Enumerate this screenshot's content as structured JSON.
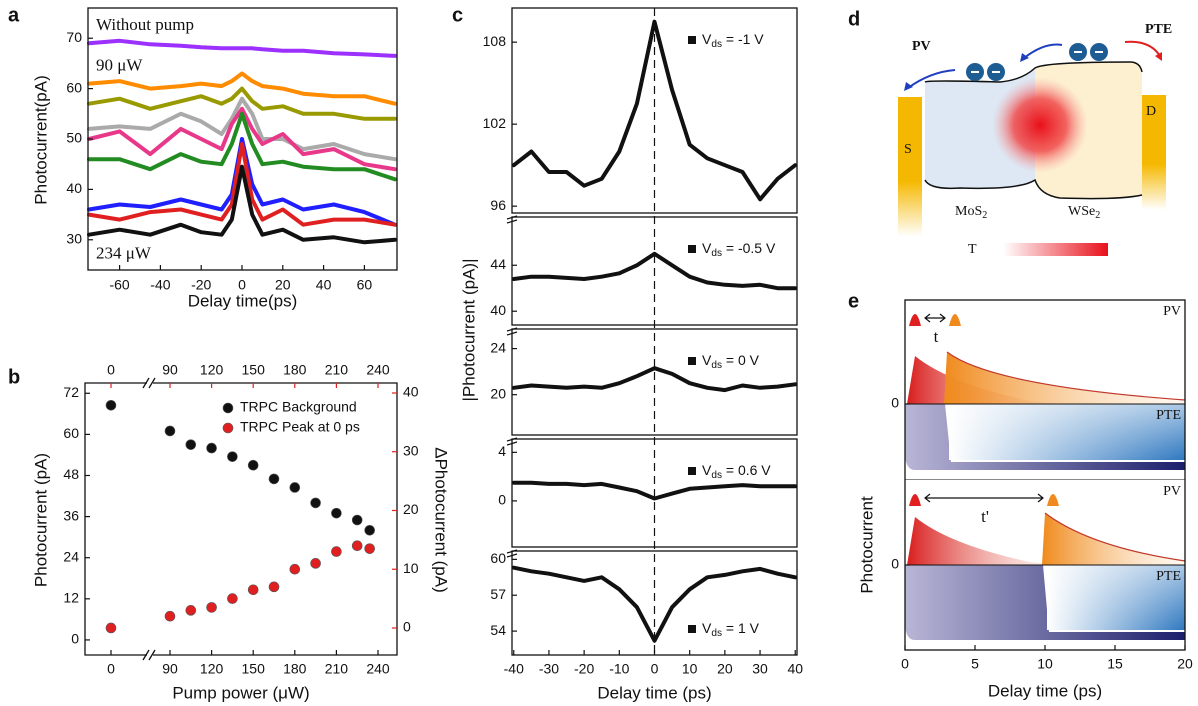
{
  "chart_data": [
    {
      "type": "line",
      "panel": "a",
      "xlabel": "Delay time(ps)",
      "ylabel": "Photocurrent(pA)",
      "x": [
        -75,
        -60,
        -45,
        -30,
        -20,
        -10,
        -5,
        0,
        5,
        10,
        20,
        30,
        45,
        60,
        75
      ],
      "xlim": [
        -75,
        75
      ],
      "xticks": [
        -60,
        -40,
        -20,
        0,
        20,
        40,
        60
      ],
      "ylim": [
        24,
        76
      ],
      "yticks": [
        30,
        40,
        50,
        60,
        70
      ],
      "series": [
        {
          "name": "Without pump",
          "color": "#9b30ff",
          "values": [
            69,
            69.5,
            68.8,
            68.5,
            68.2,
            68,
            68,
            68,
            68,
            67.8,
            67.5,
            67.5,
            67,
            66.8,
            66.5
          ]
        },
        {
          "name": "90 μW",
          "color": "#ff8c00",
          "values": [
            61,
            61.5,
            60,
            60.5,
            61,
            60.5,
            61.5,
            63,
            61.5,
            60.5,
            60,
            59,
            58.5,
            58.5,
            57
          ]
        },
        {
          "color": "#999900",
          "values": [
            57,
            58,
            56,
            57.5,
            58.5,
            57,
            58,
            60,
            57.5,
            56,
            56.5,
            55,
            55,
            54,
            54
          ]
        },
        {
          "color": "#aaaaaa",
          "values": [
            52,
            52.5,
            52,
            55,
            53.5,
            51,
            54,
            58,
            55,
            50,
            50,
            48,
            49,
            47,
            46
          ]
        },
        {
          "color": "#e8388a",
          "values": [
            50,
            51.5,
            47,
            52,
            50,
            48,
            53,
            56,
            52,
            49,
            51,
            47,
            48,
            45,
            44
          ]
        },
        {
          "color": "#228b22",
          "values": [
            46,
            46,
            44,
            47,
            45.5,
            45,
            49,
            55,
            49,
            45,
            45.5,
            44.5,
            44,
            44,
            42
          ]
        },
        {
          "color": "#1f1fff",
          "values": [
            36,
            37,
            36.5,
            38,
            37,
            36,
            39,
            50,
            41,
            37,
            38,
            36,
            37,
            35.5,
            33
          ]
        },
        {
          "color": "#e02020",
          "values": [
            35,
            34,
            35.5,
            36,
            35,
            34,
            37,
            49,
            38,
            34,
            36,
            33,
            34,
            34,
            33
          ]
        },
        {
          "name": "234 μW",
          "color": "#111111",
          "values": [
            31,
            32,
            31,
            33,
            31.5,
            31,
            34,
            44.5,
            35,
            31,
            32,
            30,
            30.5,
            29.5,
            30
          ]
        }
      ]
    },
    {
      "type": "scatter",
      "panel": "b",
      "xlabel": "Pump power (μW)",
      "ylabel": "Photocurrent (pA)",
      "y2label": "ΔPhotocurrent (pA)",
      "x": [
        0,
        90,
        105,
        120,
        135,
        150,
        165,
        180,
        195,
        210,
        225,
        234
      ],
      "xlim": [
        -15,
        248
      ],
      "xticks": [
        0,
        90,
        120,
        150,
        180,
        210,
        240
      ],
      "x2ticks": [
        0,
        90,
        120,
        150,
        180,
        210,
        240
      ],
      "ylim": [
        -4.4,
        75
      ],
      "yticks": [
        0,
        12,
        24,
        36,
        48,
        60,
        72
      ],
      "y2lim": [
        -4.6,
        41.7
      ],
      "y2ticks": [
        0,
        10,
        20,
        30,
        40
      ],
      "legend": "upper right",
      "series": [
        {
          "name": "TRPC Background",
          "color": "#111111",
          "values": [
            68.5,
            61,
            57,
            56,
            53.5,
            51,
            47,
            44.5,
            40,
            37,
            35,
            32
          ]
        },
        {
          "name": "TRPC Peak at 0 ps",
          "color": "#e02020",
          "axis": "y2",
          "values": [
            0,
            2,
            3,
            3.5,
            5,
            6.5,
            7,
            10,
            11,
            13,
            14,
            13.5
          ]
        }
      ]
    },
    {
      "type": "line",
      "panel": "c",
      "xlabel": "Delay time (ps)",
      "ylabel": "|Photocurrent (pA)|",
      "x": [
        -40,
        -35,
        -30,
        -25,
        -20,
        -15,
        -10,
        -5,
        0,
        5,
        10,
        15,
        20,
        25,
        30,
        35,
        40
      ],
      "xlim": [
        -40.5,
        40.5
      ],
      "xticks": [
        -40,
        -30,
        -20,
        -10,
        0,
        10,
        20,
        30,
        40
      ],
      "panels": [
        {
          "legend": [
            "V",
            "ds",
            " = -1 V"
          ],
          "legend_loc": "upper right",
          "ylim": [
            95.5,
            110.5
          ],
          "yticks": [
            96,
            102,
            108
          ],
          "values": [
            99,
            100,
            98.5,
            98.5,
            97.5,
            98,
            100,
            103.5,
            109.5,
            104.5,
            100.5,
            99.5,
            99,
            98.5,
            96.5,
            98,
            99
          ]
        },
        {
          "legend": [
            "V",
            "ds",
            " = -0.5 V"
          ],
          "legend_loc": "upper right",
          "ylim": [
            38.8,
            48.2
          ],
          "yticks": [
            40,
            44
          ],
          "values": [
            42.8,
            43,
            43,
            42.9,
            42.8,
            43,
            43.3,
            44,
            45,
            44,
            43,
            42.5,
            42.3,
            42.2,
            42.3,
            42,
            42
          ]
        },
        {
          "legend": [
            "V",
            "ds",
            " = 0 V"
          ],
          "legend_loc": "upper right",
          "ylim": [
            16.5,
            25.7
          ],
          "yticks": [
            20,
            24
          ],
          "values": [
            20.6,
            20.8,
            20.7,
            20.6,
            20.7,
            20.6,
            21,
            21.6,
            22.3,
            21.8,
            21,
            20.6,
            20.4,
            20.8,
            20.6,
            20.7,
            20.9
          ]
        },
        {
          "legend": [
            "V",
            "ds",
            " = 0.6 V"
          ],
          "legend_loc": "upper right",
          "ylim": [
            -3.8,
            5.1
          ],
          "yticks": [
            0,
            4
          ],
          "values": [
            1.5,
            1.5,
            1.4,
            1.4,
            1.3,
            1.4,
            1.1,
            0.8,
            0.2,
            0.6,
            1,
            1.1,
            1.2,
            1.3,
            1.2,
            1.2,
            1.2
          ]
        },
        {
          "legend": [
            "V",
            "ds",
            " = 1 V"
          ],
          "legend_loc": "lower right",
          "ylim": [
            52,
            60.7
          ],
          "yticks": [
            54,
            57,
            60
          ],
          "values": [
            59.3,
            59,
            58.8,
            58.5,
            58.2,
            58.5,
            57.5,
            56,
            53.2,
            56,
            57.5,
            58.5,
            58.7,
            59,
            59.2,
            58.8,
            58.5
          ]
        }
      ]
    },
    {
      "type": "schematic",
      "panel": "e",
      "xlabel": "Delay time (ps)",
      "ylabel": "Photocurrent",
      "xlim": [
        0,
        20
      ],
      "xticks": [
        0,
        5,
        10,
        15,
        20
      ],
      "rows": [
        {
          "pv": "PV",
          "pte": "PTE",
          "delay": "t",
          "yticks": [
            0
          ]
        },
        {
          "pv": "PV",
          "pte": "PTE",
          "delay": "t'",
          "yticks": [
            0
          ]
        }
      ]
    }
  ],
  "diagram": {
    "panel": "d",
    "pv": "PV",
    "pte": "PTE",
    "source": "S",
    "drain": "D",
    "mos2": [
      "MoS",
      "2"
    ],
    "wse2": [
      "WSe",
      "2"
    ],
    "temperature": "T"
  }
}
